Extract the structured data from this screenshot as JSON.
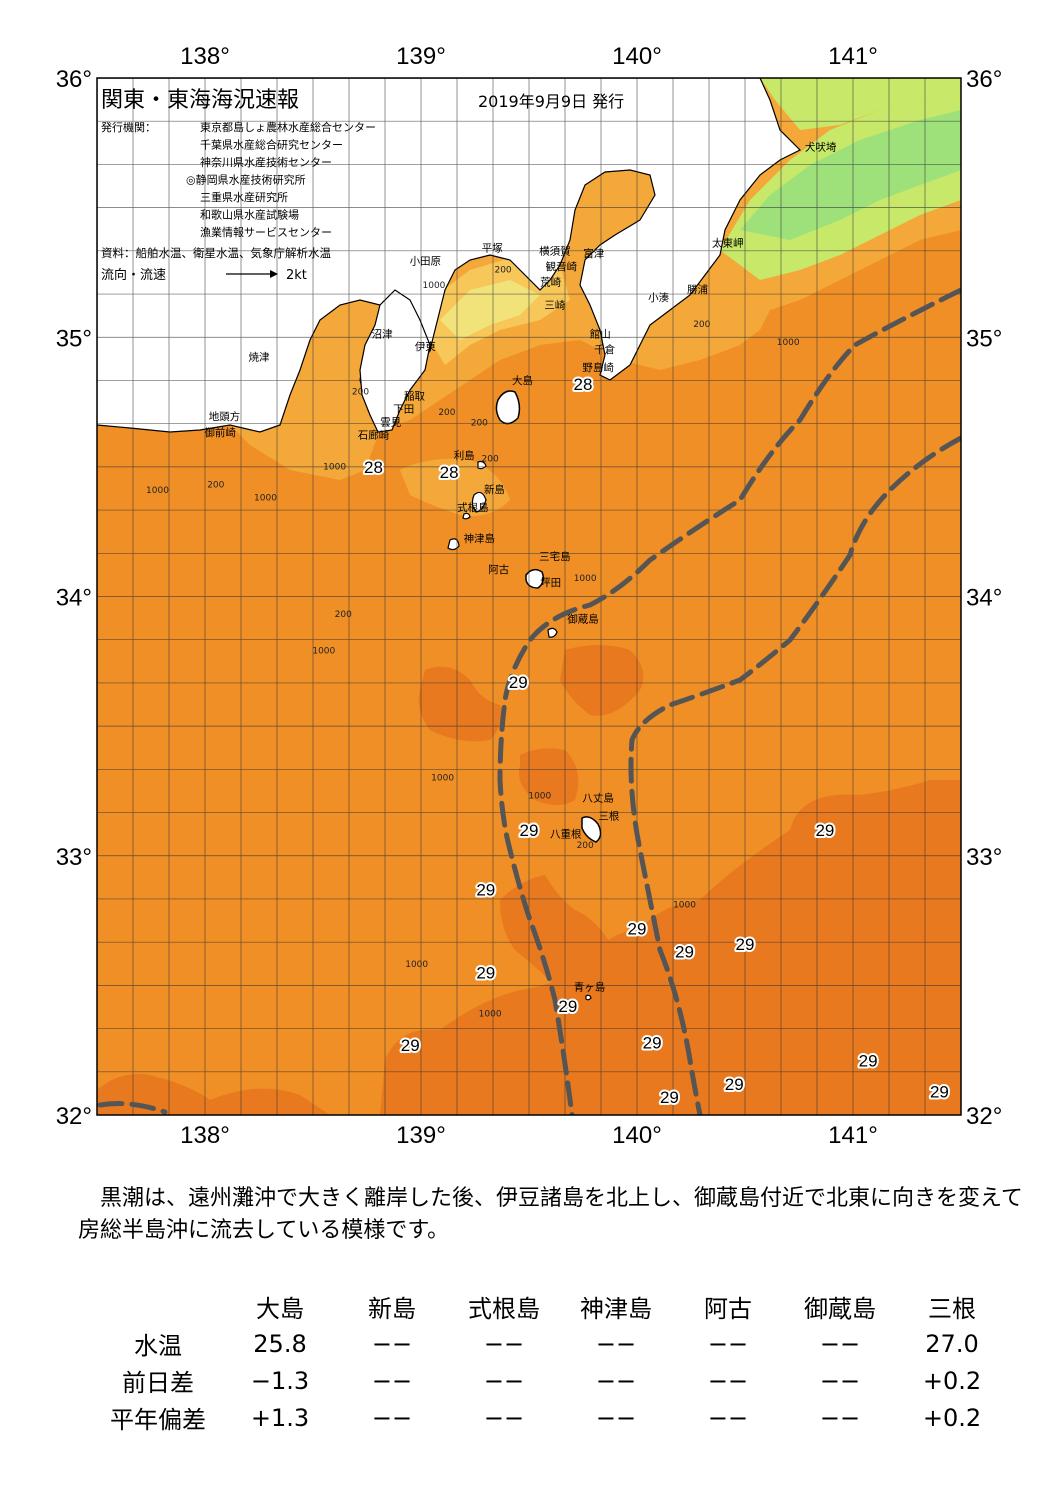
{
  "header": {
    "title": "関東・東海海況速報",
    "date": "2019年9月9日 発行",
    "issuer_label": "発行機関：",
    "issuers": [
      "東京都島しょ農林水産総合センター",
      "千葉県水産総合研究センター",
      "神奈川県水産技術センター",
      "◎静岡県水産技術研究所",
      "三重県水産研究所",
      "和歌山県水産試験場",
      "漁業情報サービスセンター"
    ],
    "sources": "資料：船舶水温、衛星水温、気象庁解析水温",
    "current_legend_label": "流向・流速",
    "current_legend_value": "2kt"
  },
  "axes": {
    "lon_ticks": [
      "138°",
      "139°",
      "140°",
      "141°"
    ],
    "lat_ticks": [
      "36°",
      "35°",
      "34°",
      "33°",
      "32°"
    ],
    "lon_range": [
      137.5,
      141.5
    ],
    "lat_range": [
      32,
      36
    ]
  },
  "colors": {
    "warm_29": "#e8791e",
    "warm_28": "#f08f26",
    "water_27": "#f4a83a",
    "water_26": "#f7c75a",
    "water_25": "#f2e27a",
    "water_cool": "#c8e86a",
    "water_cold": "#9ee07a",
    "land": "#ffffff",
    "kuroshio": "#555555"
  },
  "place_names": [
    {
      "name": "犬吠埼",
      "lon": 140.85,
      "lat": 35.72
    },
    {
      "name": "太東岬",
      "lon": 140.42,
      "lat": 35.35
    },
    {
      "name": "勝浦",
      "lon": 140.28,
      "lat": 35.17
    },
    {
      "name": "小湊",
      "lon": 140.1,
      "lat": 35.14
    },
    {
      "name": "館山",
      "lon": 139.83,
      "lat": 35.0
    },
    {
      "name": "千倉",
      "lon": 139.85,
      "lat": 34.94
    },
    {
      "name": "野島崎",
      "lon": 139.82,
      "lat": 34.87
    },
    {
      "name": "富津",
      "lon": 139.8,
      "lat": 35.31
    },
    {
      "name": "観音崎",
      "lon": 139.65,
      "lat": 35.26
    },
    {
      "name": "横須賀",
      "lon": 139.62,
      "lat": 35.32
    },
    {
      "name": "荒崎",
      "lon": 139.6,
      "lat": 35.2
    },
    {
      "name": "三崎",
      "lon": 139.62,
      "lat": 35.11
    },
    {
      "name": "平塚",
      "lon": 139.33,
      "lat": 35.33
    },
    {
      "name": "小田原",
      "lon": 139.02,
      "lat": 35.28
    },
    {
      "name": "伊東",
      "lon": 139.02,
      "lat": 34.95
    },
    {
      "name": "沼津",
      "lon": 138.82,
      "lat": 35.0
    },
    {
      "name": "焼津",
      "lon": 138.25,
      "lat": 34.91
    },
    {
      "name": "稲取",
      "lon": 138.97,
      "lat": 34.76
    },
    {
      "name": "下田",
      "lon": 138.92,
      "lat": 34.71
    },
    {
      "name": "雲見",
      "lon": 138.86,
      "lat": 34.66
    },
    {
      "name": "石廊崎",
      "lon": 138.78,
      "lat": 34.61
    },
    {
      "name": "地頭方",
      "lon": 138.09,
      "lat": 34.68
    },
    {
      "name": "御前崎",
      "lon": 138.07,
      "lat": 34.62
    },
    {
      "name": "大島",
      "lon": 139.47,
      "lat": 34.82
    },
    {
      "name": "利島",
      "lon": 139.2,
      "lat": 34.53
    },
    {
      "name": "新島",
      "lon": 139.34,
      "lat": 34.4
    },
    {
      "name": "式根島",
      "lon": 139.24,
      "lat": 34.33
    },
    {
      "name": "神津島",
      "lon": 139.27,
      "lat": 34.21
    },
    {
      "name": "三宅島",
      "lon": 139.62,
      "lat": 34.14
    },
    {
      "name": "阿古",
      "lon": 139.36,
      "lat": 34.09
    },
    {
      "name": "坪田",
      "lon": 139.6,
      "lat": 34.04
    },
    {
      "name": "御蔵島",
      "lon": 139.75,
      "lat": 33.9
    },
    {
      "name": "八丈島",
      "lon": 139.82,
      "lat": 33.21
    },
    {
      "name": "三根",
      "lon": 139.87,
      "lat": 33.14
    },
    {
      "name": "八重根",
      "lon": 139.67,
      "lat": 33.07
    },
    {
      "name": "青ヶ島",
      "lon": 139.78,
      "lat": 32.48
    }
  ],
  "temperature_labels": [
    {
      "value": "28",
      "lon": 139.75,
      "lat": 34.82
    },
    {
      "value": "28",
      "lon": 138.78,
      "lat": 34.5
    },
    {
      "value": "28",
      "lon": 139.13,
      "lat": 34.48
    },
    {
      "value": "29",
      "lon": 139.45,
      "lat": 33.67
    },
    {
      "value": "29",
      "lon": 139.5,
      "lat": 33.1
    },
    {
      "value": "29",
      "lon": 139.3,
      "lat": 32.87
    },
    {
      "value": "29",
      "lon": 139.3,
      "lat": 32.55
    },
    {
      "value": "29",
      "lon": 140.0,
      "lat": 32.72
    },
    {
      "value": "29",
      "lon": 140.22,
      "lat": 32.63
    },
    {
      "value": "29",
      "lon": 140.5,
      "lat": 32.66
    },
    {
      "value": "29",
      "lon": 140.87,
      "lat": 33.1
    },
    {
      "value": "29",
      "lon": 139.68,
      "lat": 32.42
    },
    {
      "value": "29",
      "lon": 138.95,
      "lat": 32.27
    },
    {
      "value": "29",
      "lon": 140.07,
      "lat": 32.28
    },
    {
      "value": "29",
      "lon": 140.45,
      "lat": 32.12
    },
    {
      "value": "29",
      "lon": 140.15,
      "lat": 32.07
    },
    {
      "value": "29",
      "lon": 141.07,
      "lat": 32.21
    },
    {
      "value": "29",
      "lon": 141.4,
      "lat": 32.09
    }
  ],
  "depth_labels": [
    {
      "value": "1000",
      "lon": 139.06,
      "lat": 35.19
    },
    {
      "value": "200",
      "lon": 139.38,
      "lat": 35.25
    },
    {
      "value": "1000",
      "lon": 140.7,
      "lat": 34.97
    },
    {
      "value": "200",
      "lon": 140.3,
      "lat": 35.04
    },
    {
      "value": "200",
      "lon": 138.72,
      "lat": 34.78
    },
    {
      "value": "200",
      "lon": 139.12,
      "lat": 34.7
    },
    {
      "value": "200",
      "lon": 139.27,
      "lat": 34.66
    },
    {
      "value": "200",
      "lon": 139.32,
      "lat": 34.52
    },
    {
      "value": "1000",
      "lon": 138.6,
      "lat": 34.49
    },
    {
      "value": "1000",
      "lon": 137.78,
      "lat": 34.4
    },
    {
      "value": "200",
      "lon": 138.05,
      "lat": 34.42
    },
    {
      "value": "1000",
      "lon": 138.28,
      "lat": 34.37
    },
    {
      "value": "1000",
      "lon": 139.76,
      "lat": 34.06
    },
    {
      "value": "200",
      "lon": 138.64,
      "lat": 33.92
    },
    {
      "value": "1000",
      "lon": 138.55,
      "lat": 33.78
    },
    {
      "value": "1000",
      "lon": 139.1,
      "lat": 33.29
    },
    {
      "value": "1000",
      "lon": 139.55,
      "lat": 33.22
    },
    {
      "value": "200",
      "lon": 139.76,
      "lat": 33.03
    },
    {
      "value": "1000",
      "lon": 140.22,
      "lat": 32.8
    },
    {
      "value": "1000",
      "lon": 138.98,
      "lat": 32.57
    },
    {
      "value": "1000",
      "lon": 139.32,
      "lat": 32.38
    }
  ],
  "description": "黒潮は、遠州灘沖で大きく離岸した後、伊豆諸島を北上し、御蔵島付近で北東に向きを変えて房総半島沖に流去している模様です。",
  "observations": {
    "stations": [
      "大島",
      "新島",
      "式根島",
      "神津島",
      "阿古",
      "御蔵島",
      "三根"
    ],
    "rows": [
      {
        "label": "水温",
        "values": [
          "25.8",
          "−−",
          "−−",
          "−−",
          "−−",
          "−−",
          "27.0"
        ]
      },
      {
        "label": "前日差",
        "values": [
          "−1.3",
          "−−",
          "−−",
          "−−",
          "−−",
          "−−",
          "+0.2"
        ]
      },
      {
        "label": "平年偏差",
        "values": [
          "+1.3",
          "−−",
          "−−",
          "−−",
          "−−",
          "−−",
          "+0.2"
        ]
      }
    ]
  }
}
